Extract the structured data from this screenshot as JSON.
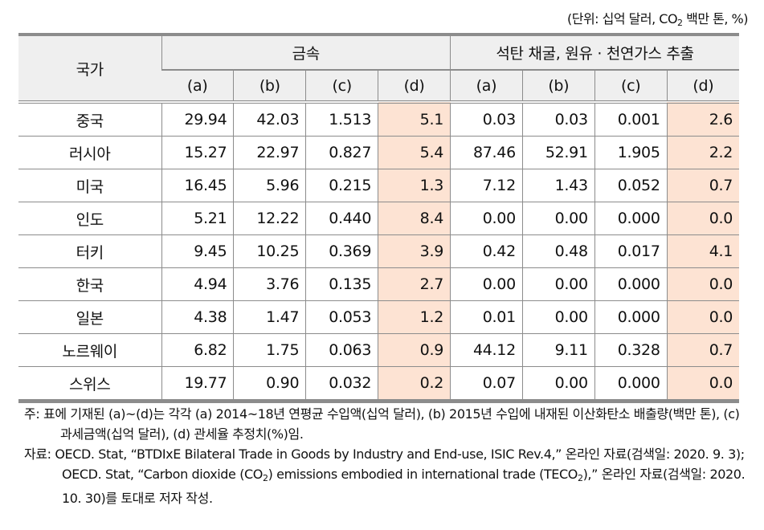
{
  "unit_label": "(단위: 십억 달러, CO",
  "unit_sub": "2",
  "unit_tail": " 백만 톤, %)",
  "header": {
    "country": "국가",
    "group1": "금속",
    "group2": "석탄 채굴, 원유 · 천연가스 추출",
    "subcols": [
      "(a)",
      "(b)",
      "(c)",
      "(d)",
      "(a)",
      "(b)",
      "(c)",
      "(d)"
    ]
  },
  "rows": [
    {
      "country": "중국",
      "values": [
        "29.94",
        "42.03",
        "1.513",
        "5.1",
        "0.03",
        "0.03",
        "0.001",
        "2.6"
      ]
    },
    {
      "country": "러시아",
      "values": [
        "15.27",
        "22.97",
        "0.827",
        "5.4",
        "87.46",
        "52.91",
        "1.905",
        "2.2"
      ]
    },
    {
      "country": "미국",
      "values": [
        "16.45",
        "5.96",
        "0.215",
        "1.3",
        "7.12",
        "1.43",
        "0.052",
        "0.7"
      ]
    },
    {
      "country": "인도",
      "values": [
        "5.21",
        "12.22",
        "0.440",
        "8.4",
        "0.00",
        "0.00",
        "0.000",
        "0.0"
      ]
    },
    {
      "country": "터키",
      "values": [
        "9.45",
        "10.25",
        "0.369",
        "3.9",
        "0.42",
        "0.48",
        "0.017",
        "4.1"
      ]
    },
    {
      "country": "한국",
      "values": [
        "4.94",
        "3.76",
        "0.135",
        "2.7",
        "0.00",
        "0.00",
        "0.000",
        "0.0"
      ]
    },
    {
      "country": "일본",
      "values": [
        "4.38",
        "1.47",
        "0.053",
        "1.2",
        "0.01",
        "0.00",
        "0.000",
        "0.0"
      ]
    },
    {
      "country": "노르웨이",
      "values": [
        "6.82",
        "1.75",
        "0.063",
        "0.9",
        "44.12",
        "9.11",
        "0.328",
        "0.7"
      ]
    },
    {
      "country": "스위스",
      "values": [
        "19.77",
        "0.90",
        "0.032",
        "0.2",
        "0.07",
        "0.00",
        "0.000",
        "0.0"
      ]
    }
  ],
  "notes": {
    "note": "주: 표에 기재된 (a)~(d)는 각각 (a) 2014~18년 연평균 수입액(십억 달러), (b) 2015년 수입에 내재된 이산화탄소 배출량(백만 톤), (c) 과세금액(십억 달러), (d) 관세율 추정치(%)임.",
    "source_1": "자료: OECD. Stat, “BTDIxE Bilateral Trade in Goods by Industry and End-use, ISIC Rev.4,” 온라인 자료(검색일: 2020. 9. 3); OECD. Stat, “Carbon dioxide (CO",
    "source_sub1": "2",
    "source_2": ") emissions embodied in international trade (TECO",
    "source_sub2": "2",
    "source_3": "),” 온라인 자료(검색일: 2020. 10. 30)를 토대로 저자 작성."
  },
  "colors": {
    "header_bg": "#efefef",
    "highlight_d": "#fde3d3",
    "border": "#8c8c8c"
  }
}
